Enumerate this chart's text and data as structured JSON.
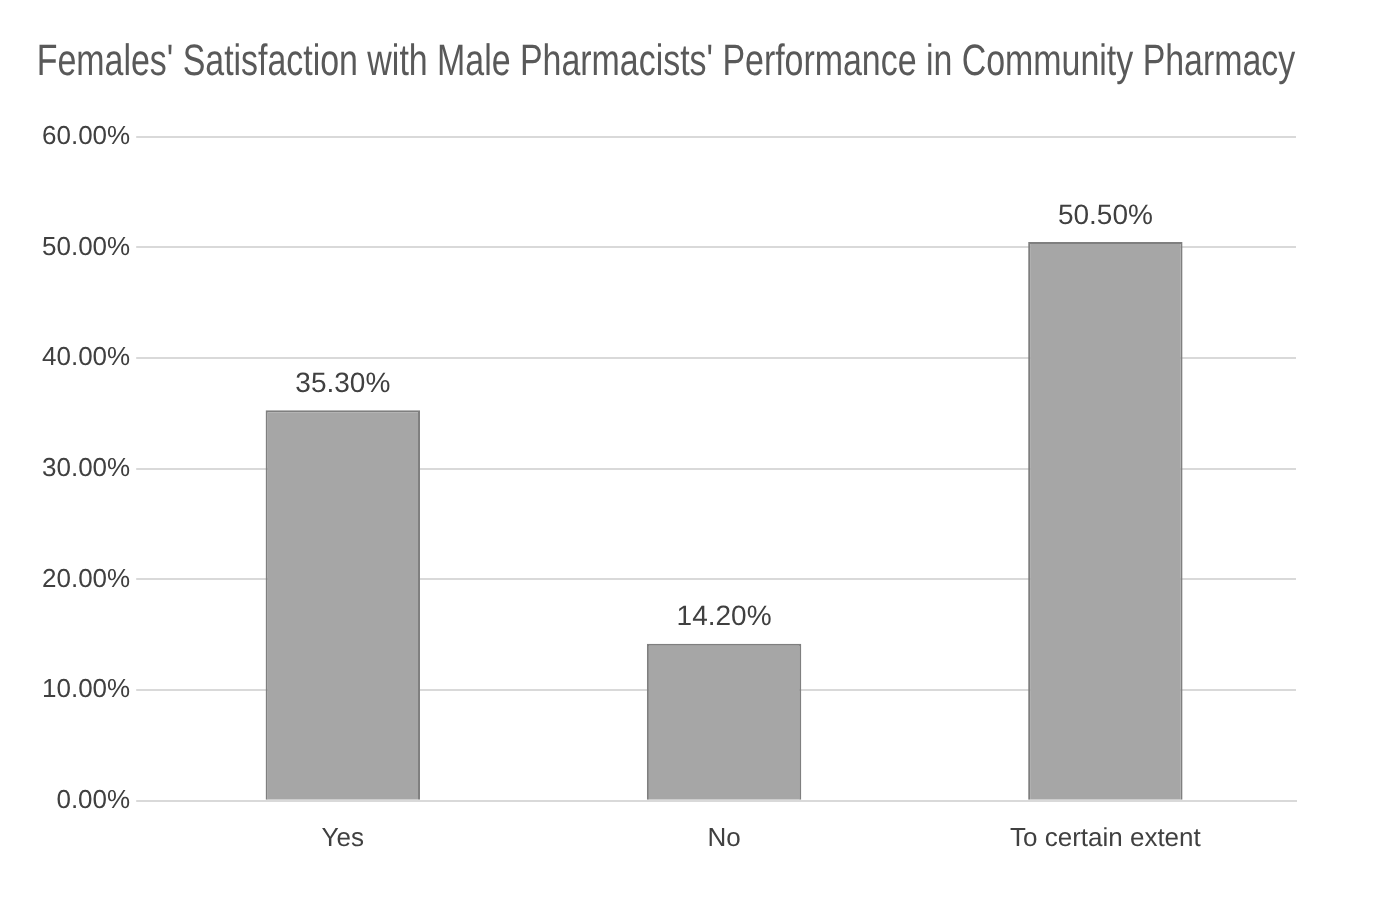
{
  "chart_data": {
    "type": "bar",
    "title": "Females' Satisfaction with Male Pharmacists' Performance in Community Pharmacy",
    "categories": [
      "Yes",
      "No",
      "To certain extent"
    ],
    "values": [
      35.3,
      14.2,
      50.5
    ],
    "value_labels": [
      "35.30%",
      "14.20%",
      "50.50%"
    ],
    "color": "#a6a6a6",
    "ylim": [
      0,
      60
    ],
    "yticks": [
      {
        "value": 0,
        "label": "0.00%"
      },
      {
        "value": 10,
        "label": "10.00%"
      },
      {
        "value": 20,
        "label": "20.00%"
      },
      {
        "value": 30,
        "label": "30.00%"
      },
      {
        "value": 40,
        "label": "40.00%"
      },
      {
        "value": 50,
        "label": "50.00%"
      },
      {
        "value": 60,
        "label": "60.00%"
      }
    ],
    "grid": "y",
    "legend": false
  }
}
